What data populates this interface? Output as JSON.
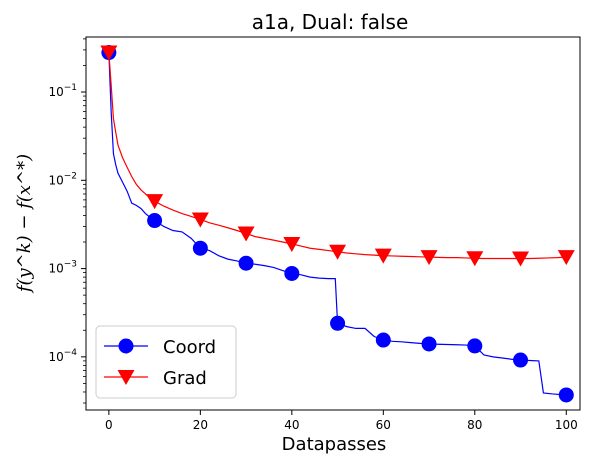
{
  "chart_data": {
    "type": "line",
    "title": "a1a, Dual: false",
    "xlabel": "Datapasses",
    "ylabel": "f(y^k) − f(x^*)",
    "xlim": [
      -5,
      103
    ],
    "ylim": [
      2.5e-05,
      0.42
    ],
    "yscale": "log",
    "x_ticks": [
      0,
      20,
      40,
      60,
      80,
      100
    ],
    "x_tick_labels": [
      "0",
      "20",
      "40",
      "60",
      "80",
      "100"
    ],
    "y_ticks": [
      0.0001,
      0.001,
      0.01,
      0.1
    ],
    "y_tick_labels": [
      "10^-4",
      "10^-3",
      "10^-2",
      "10^-1"
    ],
    "legend_position": "lower-left",
    "grid": false,
    "series": [
      {
        "name": "Coord",
        "color": "#0000ff",
        "marker": "circle",
        "line_x": [
          0,
          0.5,
          1,
          1.5,
          2,
          3,
          4,
          5,
          6,
          7,
          8,
          9,
          10,
          12,
          14,
          16,
          18,
          20,
          22,
          24,
          26,
          28,
          30,
          32,
          34,
          36,
          38,
          40,
          42,
          44,
          46,
          48,
          49.5,
          50,
          52,
          54,
          56,
          58,
          60,
          62,
          64,
          66,
          68,
          70,
          72,
          74,
          76,
          78,
          80,
          82,
          84,
          86,
          88,
          90,
          92,
          94,
          95,
          97,
          100
        ],
        "line_y": [
          0.28,
          0.06,
          0.02,
          0.015,
          0.012,
          0.0095,
          0.0075,
          0.0055,
          0.0052,
          0.0048,
          0.0042,
          0.0038,
          0.0035,
          0.003,
          0.0027,
          0.0026,
          0.0022,
          0.0017,
          0.0016,
          0.0014,
          0.00128,
          0.00122,
          0.00115,
          0.00112,
          0.00108,
          0.00103,
          0.00095,
          0.00088,
          0.00085,
          0.0008,
          0.00078,
          0.00077,
          0.00077,
          0.00024,
          0.00022,
          0.00021,
          0.00021,
          0.00017,
          0.000155,
          0.00015,
          0.000148,
          0.000145,
          0.000142,
          0.00014,
          0.000139,
          0.000138,
          0.000137,
          0.000136,
          0.000133,
          0.000105,
          0.0001,
          9.7e-05,
          9.4e-05,
          9.2e-05,
          9.1e-05,
          9e-05,
          3.9e-05,
          3.8e-05,
          3.7e-05
        ],
        "marker_x": [
          0,
          10,
          20,
          30,
          40,
          50,
          60,
          70,
          80,
          90,
          100
        ],
        "marker_y": [
          0.28,
          0.0035,
          0.0017,
          0.00115,
          0.00088,
          0.00024,
          0.000155,
          0.00014,
          0.000133,
          9.2e-05,
          3.7e-05
        ]
      },
      {
        "name": "Grad",
        "color": "#ff0000",
        "marker": "triangle-down",
        "line_x": [
          0,
          0.5,
          1,
          1.5,
          2,
          3,
          4,
          5,
          6,
          7,
          8,
          9,
          10,
          12,
          14,
          16,
          18,
          20,
          22,
          24,
          26,
          28,
          30,
          32,
          34,
          36,
          38,
          40,
          42,
          44,
          46,
          48,
          50,
          52,
          54,
          56,
          58,
          60,
          62,
          64,
          66,
          68,
          70,
          72,
          74,
          76,
          78,
          80,
          82,
          84,
          86,
          88,
          90,
          92,
          94,
          96,
          98,
          100
        ],
        "line_y": [
          0.28,
          0.12,
          0.05,
          0.035,
          0.025,
          0.018,
          0.014,
          0.011,
          0.009,
          0.0078,
          0.007,
          0.0063,
          0.0058,
          0.0051,
          0.0046,
          0.0042,
          0.0039,
          0.0036,
          0.0033,
          0.0031,
          0.0029,
          0.0027,
          0.0025,
          0.0023,
          0.0022,
          0.0021,
          0.002,
          0.0019,
          0.0018,
          0.0017,
          0.00165,
          0.0016,
          0.00155,
          0.0015,
          0.00147,
          0.00144,
          0.00142,
          0.0014,
          0.00139,
          0.00138,
          0.00137,
          0.00136,
          0.00135,
          0.00134,
          0.00133,
          0.00133,
          0.00132,
          0.00131,
          0.0013,
          0.0013,
          0.0013,
          0.0013,
          0.0013,
          0.0013,
          0.00131,
          0.00132,
          0.00133,
          0.00135
        ],
        "marker_x": [
          0,
          10,
          20,
          30,
          40,
          50,
          60,
          70,
          80,
          90,
          100
        ],
        "marker_y": [
          0.28,
          0.0058,
          0.0036,
          0.0025,
          0.0019,
          0.00155,
          0.0014,
          0.00135,
          0.00131,
          0.0013,
          0.00135
        ]
      }
    ]
  }
}
